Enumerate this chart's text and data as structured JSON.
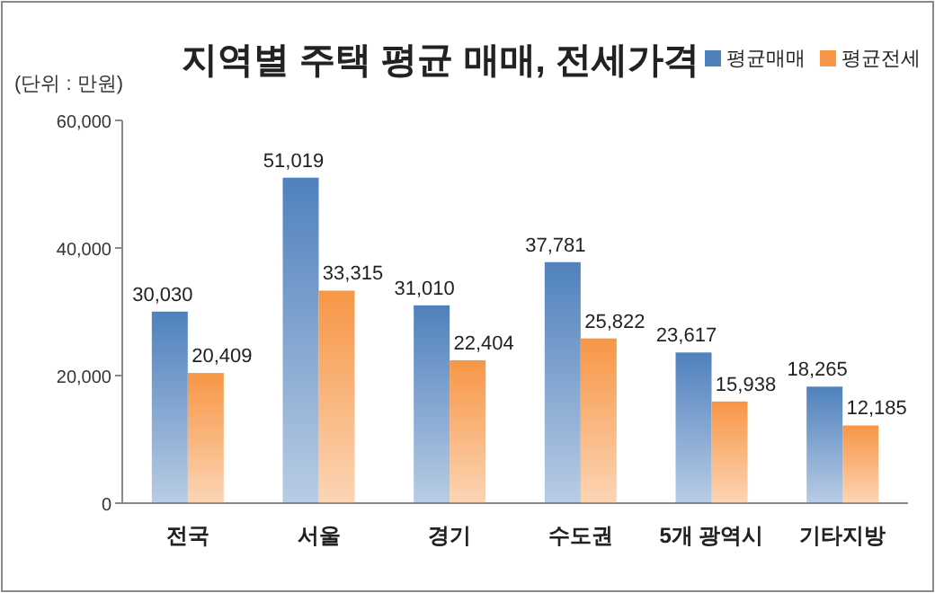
{
  "chart_data": {
    "type": "bar",
    "title": "지역별 주택 평균 매매, 전세가격",
    "annotations": [
      "(단위 : 만원)"
    ],
    "categories": [
      "전국",
      "서울",
      "경기",
      "수도권",
      "5개 광역시",
      "기타지방"
    ],
    "series": [
      {
        "name": "평균매매",
        "color": "#4f81bd",
        "values": [
          30030,
          51019,
          31010,
          37781,
          23617,
          18265
        ],
        "value_labels": [
          "30,030",
          "51,019",
          "31,010",
          "37,781",
          "23,617",
          "18,265"
        ]
      },
      {
        "name": "평균전세",
        "color": "#f79646",
        "values": [
          20409,
          33315,
          22404,
          25822,
          15938,
          12185
        ],
        "value_labels": [
          "20,409",
          "33,315",
          "22,404",
          "25,822",
          "15,938",
          "12,185"
        ]
      }
    ],
    "ylim": [
      0,
      60000
    ],
    "yticks": [
      0,
      {
        "value": 20000,
        "label": "20,000"
      },
      {
        "value": 40000,
        "label": "40,000"
      },
      {
        "value": 60000,
        "label": "60,000"
      }
    ],
    "grid": false,
    "legend": "top right"
  }
}
